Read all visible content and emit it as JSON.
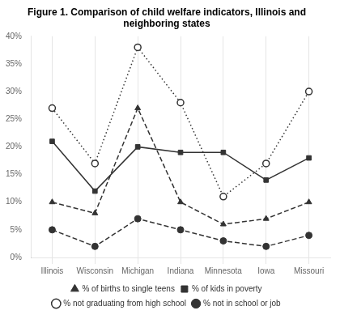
{
  "chart_data": {
    "type": "line",
    "title": "Figure 1. Comparison of child welfare indicators, Illinois and neighboring states",
    "categories": [
      "Illinois",
      "Wisconsin",
      "Michigan",
      "Indiana",
      "Minnesota",
      "Iowa",
      "Missouri"
    ],
    "series": [
      {
        "name": "% of births to single teens",
        "color": "#333333",
        "marker": "triangle",
        "line_style": "dashed",
        "values": [
          10,
          8,
          27,
          10,
          6,
          7,
          10
        ]
      },
      {
        "name": "% of kids in poverty",
        "color": "#333333",
        "marker": "square",
        "line_style": "solid",
        "values": [
          21,
          12,
          20,
          19,
          19,
          14,
          18
        ]
      },
      {
        "name": "% not graduating from high school",
        "color": "#333333",
        "marker": "open_circle",
        "line_style": "dotted",
        "values": [
          27,
          17,
          38,
          28,
          11,
          17,
          30
        ]
      },
      {
        "name": "% not in school or job",
        "color": "#333333",
        "marker": "circle",
        "line_style": "dashed",
        "values": [
          5,
          2,
          7,
          5,
          3,
          2,
          4
        ]
      }
    ],
    "ylim": [
      0,
      40
    ],
    "yticks": [
      {
        "value": 0,
        "label": "0%"
      },
      {
        "value": 5,
        "label": "5%"
      },
      {
        "value": 10,
        "label": "10%"
      },
      {
        "value": 15,
        "label": "15%"
      },
      {
        "value": 20,
        "label": "20%"
      },
      {
        "value": 25,
        "label": "25%"
      },
      {
        "value": 30,
        "label": "30%"
      },
      {
        "value": 35,
        "label": "35%"
      },
      {
        "value": 40,
        "label": "40%"
      }
    ],
    "grid": "x",
    "legend": "bottom"
  }
}
